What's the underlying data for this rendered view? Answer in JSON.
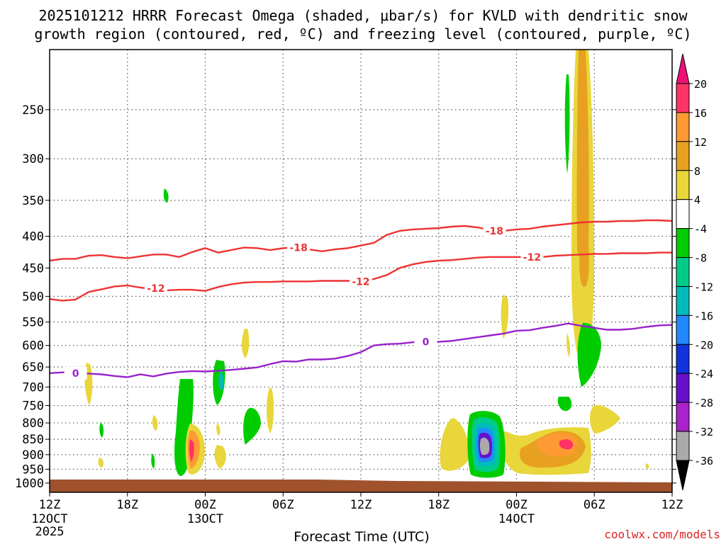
{
  "chart_data": {
    "type": "heatmap",
    "title_line1": "2025101212 HRRR Forecast Omega (shaded, μbar/s) for KVLD with dendritic snow",
    "title_line2": "growth region (contoured, red, ºC) and freezing level (contoured, purple, ºC)",
    "xlabel": "Forecast Time (UTC)",
    "ylabel": "",
    "credit": "coolwx.com/models",
    "x_range_hours": [
      0,
      48
    ],
    "x_ticks": [
      {
        "h": 0,
        "label": "12Z",
        "sub": "12OCT",
        "sub2": "2025"
      },
      {
        "h": 6,
        "label": "18Z",
        "sub": "",
        "sub2": ""
      },
      {
        "h": 12,
        "label": "00Z",
        "sub": "13OCT",
        "sub2": ""
      },
      {
        "h": 18,
        "label": "06Z",
        "sub": "",
        "sub2": ""
      },
      {
        "h": 24,
        "label": "12Z",
        "sub": "",
        "sub2": ""
      },
      {
        "h": 30,
        "label": "18Z",
        "sub": "",
        "sub2": ""
      },
      {
        "h": 36,
        "label": "00Z",
        "sub": "14OCT",
        "sub2": ""
      },
      {
        "h": 42,
        "label": "06Z",
        "sub": "",
        "sub2": ""
      },
      {
        "h": 48,
        "label": "12Z",
        "sub": "",
        "sub2": ""
      }
    ],
    "y_range_hpa": [
      1035,
      200
    ],
    "y_ticks": [
      250,
      300,
      350,
      400,
      450,
      500,
      550,
      600,
      650,
      700,
      750,
      800,
      850,
      900,
      950,
      1000
    ],
    "colorbar": {
      "labels": [
        "20",
        "16",
        "12",
        "8",
        "4",
        "-4",
        "-8",
        "-12",
        "-16",
        "-20",
        "-24",
        "-28",
        "-32",
        "-36"
      ],
      "colors": [
        "#ff3366",
        "#ff9933",
        "#e8a020",
        "#e8d63a",
        "#ffffff",
        "#00cc00",
        "#00cc88",
        "#00bbbb",
        "#2288ff",
        "#1133dd",
        "#6611cc",
        "#aa22cc",
        "#aaaaaa"
      ],
      "top_arrow": "#ee1177",
      "bottom_arrow": "#000000"
    },
    "series": [
      {
        "name": "-18 ºC contour",
        "color": "#ee3333",
        "label": "-18",
        "label_points": [
          [
            19.2,
            417
          ],
          [
            34.3,
            392
          ]
        ],
        "points": [
          [
            0,
            438
          ],
          [
            1,
            435
          ],
          [
            2,
            435
          ],
          [
            3,
            430
          ],
          [
            4,
            429
          ],
          [
            5,
            432
          ],
          [
            6,
            434
          ],
          [
            7,
            431
          ],
          [
            8,
            428
          ],
          [
            9,
            428
          ],
          [
            10,
            432
          ],
          [
            11,
            424
          ],
          [
            12,
            418
          ],
          [
            13,
            425
          ],
          [
            14,
            421
          ],
          [
            15,
            417
          ],
          [
            16,
            418
          ],
          [
            17,
            421
          ],
          [
            18,
            418
          ],
          [
            19,
            417
          ],
          [
            20,
            420
          ],
          [
            21,
            423
          ],
          [
            22,
            420
          ],
          [
            23,
            418
          ],
          [
            24,
            414
          ],
          [
            25,
            410
          ],
          [
            26,
            398
          ],
          [
            27,
            392
          ],
          [
            28,
            390
          ],
          [
            29,
            389
          ],
          [
            30,
            388
          ],
          [
            31,
            386
          ],
          [
            32,
            385
          ],
          [
            33,
            387
          ],
          [
            34,
            391
          ],
          [
            35,
            392
          ],
          [
            36,
            390
          ],
          [
            37,
            389
          ],
          [
            38,
            386
          ],
          [
            39,
            384
          ],
          [
            40,
            382
          ],
          [
            41,
            380
          ],
          [
            42,
            379
          ],
          [
            43,
            379
          ],
          [
            44,
            378
          ],
          [
            45,
            378
          ],
          [
            46,
            377
          ],
          [
            47,
            377
          ],
          [
            48,
            378
          ]
        ]
      },
      {
        "name": "-12 ºC contour",
        "color": "#ee3333",
        "label": "-12",
        "label_points": [
          [
            8.2,
            485
          ],
          [
            24.0,
            473
          ],
          [
            37.2,
            432
          ]
        ],
        "points": [
          [
            0,
            505
          ],
          [
            1,
            508
          ],
          [
            2,
            506
          ],
          [
            3,
            492
          ],
          [
            4,
            487
          ],
          [
            5,
            482
          ],
          [
            6,
            480
          ],
          [
            7,
            484
          ],
          [
            8,
            487
          ],
          [
            9,
            489
          ],
          [
            10,
            488
          ],
          [
            11,
            488
          ],
          [
            12,
            490
          ],
          [
            13,
            483
          ],
          [
            14,
            478
          ],
          [
            15,
            475
          ],
          [
            16,
            474
          ],
          [
            17,
            474
          ],
          [
            18,
            473
          ],
          [
            19,
            473
          ],
          [
            20,
            473
          ],
          [
            21,
            472
          ],
          [
            22,
            472
          ],
          [
            23,
            472
          ],
          [
            24,
            472
          ],
          [
            25,
            469
          ],
          [
            26,
            462
          ],
          [
            27,
            450
          ],
          [
            28,
            444
          ],
          [
            29,
            440
          ],
          [
            30,
            438
          ],
          [
            31,
            437
          ],
          [
            32,
            435
          ],
          [
            33,
            433
          ],
          [
            34,
            432
          ],
          [
            35,
            432
          ],
          [
            36,
            432
          ],
          [
            37,
            432
          ],
          [
            38,
            432
          ],
          [
            39,
            430
          ],
          [
            40,
            429
          ],
          [
            41,
            428
          ],
          [
            42,
            427
          ],
          [
            43,
            427
          ],
          [
            44,
            426
          ],
          [
            45,
            426
          ],
          [
            46,
            426
          ],
          [
            47,
            425
          ],
          [
            48,
            425
          ]
        ]
      },
      {
        "name": "0 ºC freezing level",
        "color": "#9922cc",
        "label": "0",
        "label_points": [
          [
            2.0,
            665
          ],
          [
            29.0,
            592
          ]
        ],
        "points": [
          [
            0,
            665
          ],
          [
            1,
            663
          ],
          [
            2,
            665
          ],
          [
            3,
            666
          ],
          [
            4,
            668
          ],
          [
            5,
            672
          ],
          [
            6,
            675
          ],
          [
            7,
            668
          ],
          [
            8,
            673
          ],
          [
            9,
            666
          ],
          [
            10,
            662
          ],
          [
            11,
            660
          ],
          [
            12,
            661
          ],
          [
            13,
            659
          ],
          [
            14,
            657
          ],
          [
            15,
            654
          ],
          [
            16,
            651
          ],
          [
            17,
            643
          ],
          [
            18,
            636
          ],
          [
            19,
            637
          ],
          [
            20,
            632
          ],
          [
            21,
            632
          ],
          [
            22,
            630
          ],
          [
            23,
            624
          ],
          [
            24,
            615
          ],
          [
            25,
            600
          ],
          [
            26,
            597
          ],
          [
            27,
            596
          ],
          [
            28,
            593
          ],
          [
            29,
            592
          ],
          [
            30,
            592
          ],
          [
            31,
            590
          ],
          [
            32,
            586
          ],
          [
            33,
            582
          ],
          [
            34,
            578
          ],
          [
            35,
            574
          ],
          [
            36,
            568
          ],
          [
            37,
            567
          ],
          [
            38,
            562
          ],
          [
            39,
            558
          ],
          [
            40,
            553
          ],
          [
            41,
            558
          ],
          [
            42,
            562
          ],
          [
            43,
            566
          ],
          [
            44,
            566
          ],
          [
            45,
            564
          ],
          [
            46,
            560
          ],
          [
            47,
            557
          ],
          [
            48,
            556
          ]
        ]
      }
    ]
  }
}
